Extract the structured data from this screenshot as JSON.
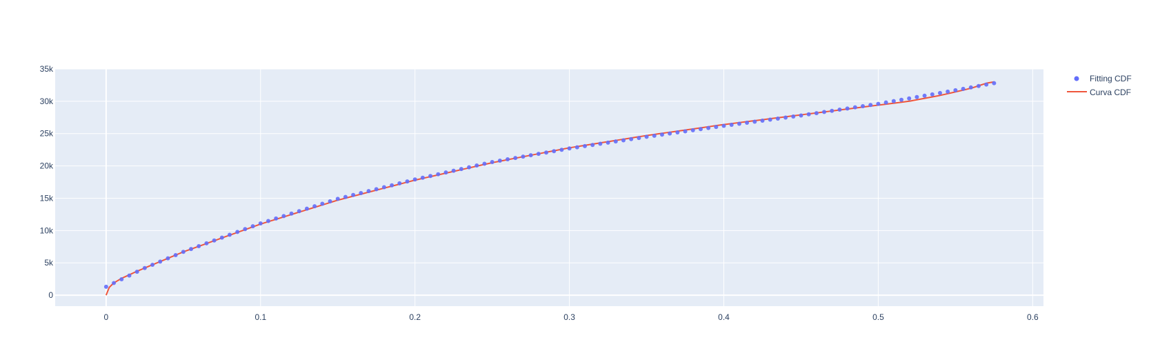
{
  "chart_data": {
    "type": "scatter",
    "title": "",
    "xlabel": "",
    "ylabel": "",
    "xlim": [
      -0.033,
      0.607
    ],
    "ylim": [
      -1700,
      35000
    ],
    "xticks": [
      0,
      0.1,
      0.2,
      0.3,
      0.4,
      0.5,
      0.6
    ],
    "xtick_labels": [
      "0",
      "0.1",
      "0.2",
      "0.3",
      "0.4",
      "0.5",
      "0.6"
    ],
    "yticks": [
      0,
      5000,
      10000,
      15000,
      20000,
      25000,
      30000,
      35000
    ],
    "ytick_labels": [
      "0",
      "5k",
      "10k",
      "15k",
      "20k",
      "25k",
      "30k",
      "35k"
    ],
    "grid": true,
    "legend_position": "top-right",
    "colors": {
      "plot_background": "#E5ECF6",
      "grid": "#ffffff",
      "fitting": "#636EFA",
      "curva": "#EF553B"
    },
    "series": [
      {
        "name": "Fitting CDF",
        "mode": "markers",
        "x_start": 0,
        "x_end": 0.575,
        "points": 116,
        "x": [
          0,
          0.025,
          0.05,
          0.1,
          0.15,
          0.2,
          0.25,
          0.3,
          0.35,
          0.4,
          0.45,
          0.5,
          0.55,
          0.575
        ],
        "y": [
          1300,
          4200,
          6700,
          11100,
          14900,
          17900,
          20600,
          22700,
          24500,
          26200,
          27800,
          29600,
          31700,
          32800
        ]
      },
      {
        "name": "Curva CDF",
        "mode": "lines",
        "x": [
          0,
          0.002,
          0.005,
          0.01,
          0.02,
          0.03,
          0.05,
          0.1,
          0.15,
          0.2,
          0.25,
          0.3,
          0.35,
          0.4,
          0.45,
          0.5,
          0.52,
          0.54,
          0.56,
          0.57,
          0.575
        ],
        "y": [
          0,
          1200,
          1900,
          2600,
          3700,
          4700,
          6700,
          11000,
          14700,
          17800,
          20500,
          22800,
          24700,
          26400,
          27900,
          29400,
          30000,
          30900,
          32000,
          32800,
          33000
        ]
      }
    ]
  }
}
